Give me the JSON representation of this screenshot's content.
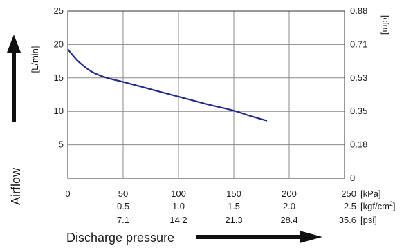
{
  "chart_data": {
    "type": "line",
    "series": [
      {
        "x": [
          0,
          5,
          10,
          20,
          30,
          40,
          50,
          75,
          100,
          125,
          150,
          165,
          180
        ],
        "y": [
          19.3,
          18.3,
          17.4,
          16.1,
          15.3,
          14.8,
          14.4,
          13.3,
          12.2,
          11.1,
          10.1,
          9.3,
          8.6
        ],
        "color": "#1f2a8a"
      }
    ],
    "xlim": [
      0,
      250
    ],
    "ylim": [
      0,
      25
    ],
    "x_ticks": [
      0,
      50,
      100,
      150,
      200,
      250
    ],
    "y_ticks_left": [
      "5",
      "10",
      "15",
      "20",
      "25"
    ],
    "y_ticks_right": [
      "0",
      "0.18",
      "0.35",
      "0.53",
      "0.71",
      "0.88"
    ],
    "y_unit_left": "[L/min]",
    "y_unit_right": "[cfm]",
    "y_title": "Airflow",
    "x_title": "Discharge pressure",
    "x_scales": [
      {
        "labels": [
          "0",
          "50",
          "100",
          "150",
          "200",
          "250"
        ],
        "unit": "[kPa]"
      },
      {
        "labels": [
          "",
          "0.5",
          "1.0",
          "1.5",
          "2.0",
          "2.5"
        ],
        "unit": "[kgf/cm",
        "unit_sup": "2",
        "unit_end": "]"
      },
      {
        "labels": [
          "",
          "7.1",
          "14.2",
          "21.3",
          "28.4",
          "35.6"
        ],
        "unit": "[psi]"
      }
    ],
    "grid": true
  }
}
